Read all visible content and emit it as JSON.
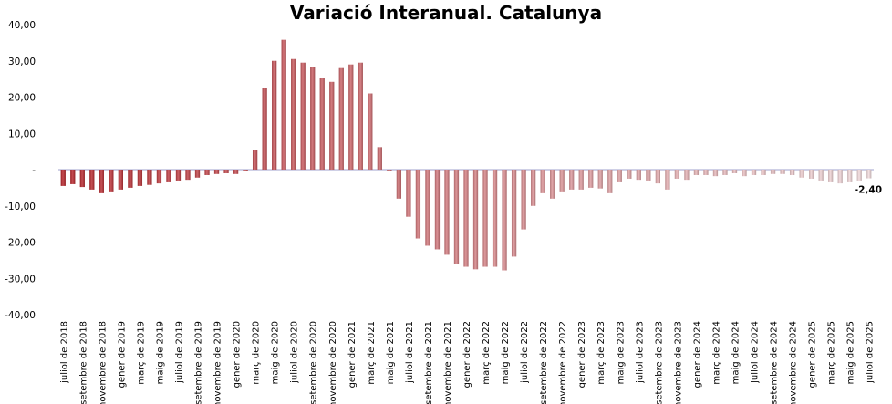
{
  "chart_data": {
    "type": "bar",
    "title": "Variació Interanual. Catalunya",
    "xlabel": "",
    "ylabel": "",
    "ylim": [
      -40,
      40
    ],
    "yticks": [
      {
        "value": 40,
        "label": "40,00"
      },
      {
        "value": 30,
        "label": "30,00"
      },
      {
        "value": 20,
        "label": "20,00"
      },
      {
        "value": 10,
        "label": "10,00"
      },
      {
        "value": 0,
        "label": "-"
      },
      {
        "value": -10,
        "label": "-10,00"
      },
      {
        "value": -20,
        "label": "-20,00"
      },
      {
        "value": -30,
        "label": "-30,00"
      },
      {
        "value": -40,
        "label": "-40,00"
      }
    ],
    "categories": [
      "jul-2018",
      "ago-2018",
      "set-2018",
      "oct-2018",
      "nov-2018",
      "des-2018",
      "gen-2019",
      "feb-2019",
      "mar-2019",
      "abr-2019",
      "mai-2019",
      "jun-2019",
      "jul-2019",
      "ago-2019",
      "set-2019",
      "oct-2019",
      "nov-2019",
      "des-2019",
      "gen-2020",
      "feb-2020",
      "mar-2020",
      "abr-2020",
      "mai-2020",
      "jun-2020",
      "jul-2020",
      "ago-2020",
      "set-2020",
      "oct-2020",
      "nov-2020",
      "des-2020",
      "gen-2021",
      "feb-2021",
      "mar-2021",
      "abr-2021",
      "mai-2021",
      "jun-2021",
      "jul-2021",
      "ago-2021",
      "set-2021",
      "oct-2021",
      "nov-2021",
      "des-2021",
      "gen-2022",
      "feb-2022",
      "mar-2022",
      "abr-2022",
      "mai-2022",
      "jun-2022",
      "jul-2022",
      "ago-2022",
      "set-2022",
      "oct-2022",
      "nov-2022",
      "des-2022",
      "gen-2023",
      "feb-2023",
      "mar-2023",
      "abr-2023",
      "mai-2023",
      "jun-2023",
      "jul-2023",
      "ago-2023",
      "set-2023",
      "oct-2023",
      "nov-2023",
      "des-2023",
      "gen-2024",
      "feb-2024",
      "mar-2024",
      "abr-2024",
      "mai-2024",
      "jun-2024",
      "jul-2024",
      "ago-2024",
      "set-2024",
      "oct-2024",
      "nov-2024",
      "des-2024",
      "gen-2025",
      "feb-2025",
      "mar-2025",
      "abr-2025",
      "mai-2025",
      "jun-2025",
      "jul-2025"
    ],
    "x_tick_labels": [
      "juliol de 2018",
      "",
      "setembre de 2018",
      "",
      "novembre de 2018",
      "",
      "gener de 2019",
      "",
      "març de 2019",
      "",
      "maig de 2019",
      "",
      "juliol de 2019",
      "",
      "setembre de 2019",
      "",
      "novembre de 2019",
      "",
      "gener de 2020",
      "",
      "març de 2020",
      "",
      "maig de 2020",
      "",
      "juliol de 2020",
      "",
      "setembre de 2020",
      "",
      "novembre de 2020",
      "",
      "gener de 2021",
      "",
      "març de 2021",
      "",
      "maig de 2021",
      "",
      "juliol de 2021",
      "",
      "setembre de 2021",
      "",
      "novembre de 2021",
      "",
      "gener de 2022",
      "",
      "març de 2022",
      "",
      "maig de 2022",
      "",
      "juliol de 2022",
      "",
      "setembre de 2022",
      "",
      "novembre de 2022",
      "",
      "gener de 2023",
      "",
      "març de 2023",
      "",
      "maig de 2023",
      "",
      "juliol de 2023",
      "",
      "setembre de 2023",
      "",
      "novembre de 2023",
      "",
      "gener de 2024",
      "",
      "març de 2024",
      "",
      "maig de 2024",
      "",
      "juliol de 2024",
      "",
      "setembre de 2024",
      "",
      "novembre de 2024",
      "",
      "gener de 2025",
      "",
      "març de 2025",
      "",
      "maig de 2025",
      "",
      "juliol de 2025"
    ],
    "values": [
      -4.5,
      -4.0,
      -4.8,
      -5.5,
      -6.5,
      -6.0,
      -5.5,
      -5.0,
      -4.5,
      -4.2,
      -3.8,
      -3.5,
      -3.0,
      -2.8,
      -2.2,
      -1.5,
      -1.2,
      -1.0,
      -1.2,
      -0.3,
      5.5,
      22.5,
      30.0,
      35.8,
      30.5,
      29.5,
      28.2,
      25.2,
      24.2,
      28.0,
      29.0,
      29.5,
      21.0,
      6.2,
      -0.3,
      -8.0,
      -13.0,
      -19.0,
      -21.0,
      -22.0,
      -23.5,
      -26.0,
      -26.8,
      -27.5,
      -26.8,
      -26.8,
      -27.8,
      -24.0,
      -16.5,
      -10.0,
      -6.5,
      -8.0,
      -6.0,
      -5.5,
      -5.5,
      -5.0,
      -5.2,
      -6.5,
      -3.5,
      -2.5,
      -2.8,
      -3.0,
      -3.8,
      -5.5,
      -2.5,
      -2.8,
      -1.5,
      -1.5,
      -1.8,
      -1.5,
      -1.0,
      -1.8,
      -1.5,
      -1.5,
      -1.2,
      -1.2,
      -1.5,
      -2.2,
      -2.5,
      -3.0,
      -3.5,
      -3.8,
      -3.5,
      -3.0,
      -2.4
    ],
    "data_labels": [
      {
        "index": 84,
        "text": "-2,40"
      }
    ],
    "grid": false,
    "legend": "none",
    "colors": {
      "start": "#b8242a",
      "end": "#f3dcde",
      "zero_line": "#cfd0e6"
    }
  }
}
